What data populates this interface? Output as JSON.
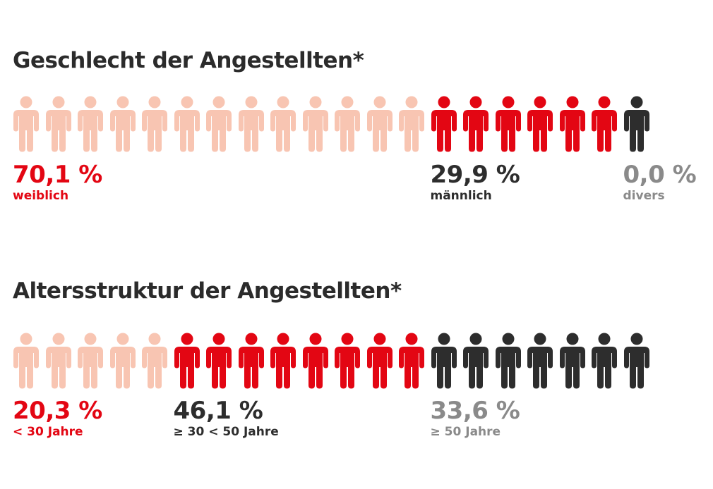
{
  "colors": {
    "light": "#f8c5b2",
    "red": "#e30613",
    "dark": "#2d2d2d",
    "gray": "#8a8a8a"
  },
  "chart_data": [
    {
      "type": "pictogram",
      "title": "Geschlecht der Angestellten*",
      "total_icons": 20,
      "categories": [
        {
          "label": "weiblich",
          "value_text": "70,1 %",
          "value": 70.1,
          "icons": 13,
          "icon_color": "light",
          "text_color": "red"
        },
        {
          "label": "männlich",
          "value_text": "29,9 %",
          "value": 29.9,
          "icons": 6,
          "icon_color": "red",
          "text_color": "dark"
        },
        {
          "label": "divers",
          "value_text": "0,0 %",
          "value": 0.0,
          "icons": 1,
          "icon_color": "dark",
          "text_color": "gray"
        }
      ]
    },
    {
      "type": "pictogram",
      "title": "Altersstruktur der Angestellten*",
      "total_icons": 20,
      "categories": [
        {
          "label": "< 30 Jahre",
          "value_text": "20,3 %",
          "value": 20.3,
          "icons": 5,
          "icon_color": "light",
          "text_color": "red"
        },
        {
          "label": "≥ 30 < 50 Jahre",
          "value_text": "46,1 %",
          "value": 46.1,
          "icons": 8,
          "icon_color": "red",
          "text_color": "dark"
        },
        {
          "label": "≥ 50 Jahre",
          "value_text": "33,6 %",
          "value": 33.6,
          "icons": 7,
          "icon_color": "dark",
          "text_color": "gray"
        }
      ]
    }
  ]
}
